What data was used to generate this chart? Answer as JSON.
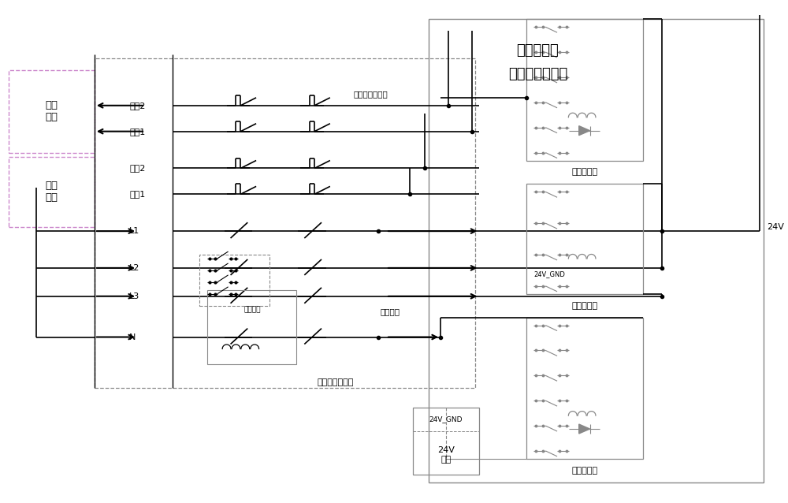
{
  "title_line1": "欧标四线制",
  "title_line2": "转辙机仿真电路",
  "bg_color": "#ffffff",
  "line_color": "#000000",
  "gray_line_color": "#888888",
  "purple_color": "#9b59b6",
  "box_border_gray": "#aaaaaa",
  "box_border_purple": "#cc88cc",
  "lbl_zhuangtai_caiji": "状态\n采集",
  "lbl_dongtai_maichong": "动态\n脉冲",
  "lbl_huicai2": "回采2",
  "lbl_huicai1": "回采1",
  "lbl_maichong2": "脉冲2",
  "lbl_maichong1": "脉冲1",
  "lbl_L1": "L1",
  "lbl_L2": "L2",
  "lbl_L3": "L3",
  "lbl_N": "N",
  "lbl_dianliu_jiance": "电流检测",
  "lbl_zhuangtai_huicai": "转辙机状态回采",
  "lbl_qudong_shuchu": "驱动输出",
  "lbl_sixian_zhuanche": "四线制转辙机板",
  "lbl_di1_jidianqi": "第一继电器",
  "lbl_di2_jidianqi": "第二继电器",
  "lbl_di3_jidianqi": "第三继电器",
  "lbl_24V_GND_1": "24V_GND",
  "lbl_24V_GND_2": "24V_GND",
  "lbl_24V_dianyuan": "24V\n电源",
  "lbl_24V": "24V"
}
